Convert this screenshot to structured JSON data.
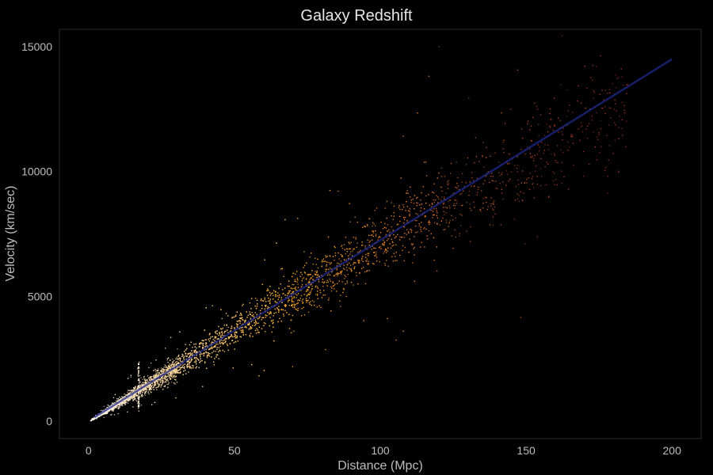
{
  "chart_data": {
    "type": "scatter",
    "title": "Galaxy Redshift",
    "xlabel": "Distance (Mpc)",
    "ylabel": "Velocity (km/sec)",
    "xlim": [
      -10,
      210
    ],
    "ylim": [
      -700,
      15700
    ],
    "x_ticks": [
      0,
      50,
      100,
      150,
      200
    ],
    "y_ticks": [
      0,
      5000,
      10000,
      15000
    ],
    "grid": false,
    "background_color": "#000000",
    "panel_border_color": "#2a2a2a",
    "point_color_near": "#fff3e0",
    "point_color_mid": "#f5a623",
    "point_color_far": "#c0392b",
    "trend_color": "#1f2a8c",
    "trend_line": {
      "x": [
        2,
        200
      ],
      "y": [
        150,
        14500
      ]
    },
    "density_bands": [
      {
        "x_min": 1,
        "x_max": 30,
        "count": 2600,
        "slope": 73,
        "spread": 0.18
      },
      {
        "x_min": 30,
        "x_max": 70,
        "count": 2200,
        "slope": 73,
        "spread": 0.17
      },
      {
        "x_min": 70,
        "x_max": 120,
        "count": 1400,
        "slope": 72,
        "spread": 0.16
      },
      {
        "x_min": 120,
        "x_max": 185,
        "count": 450,
        "slope": 70,
        "spread": 0.16
      }
    ]
  }
}
